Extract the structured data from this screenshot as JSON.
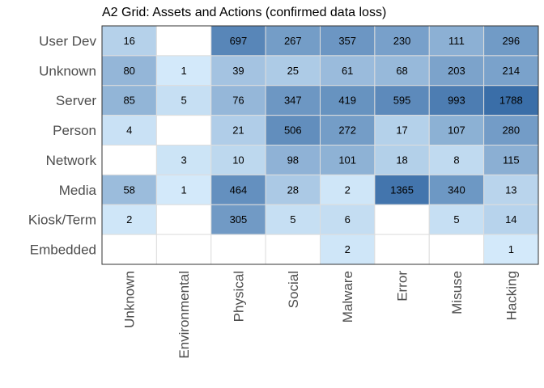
{
  "chart_data": {
    "type": "heatmap",
    "title": "A2 Grid: Assets and Actions (confirmed data loss)",
    "xlabel": "",
    "ylabel": "",
    "x_categories": [
      "Unknown",
      "Environmental",
      "Physical",
      "Social",
      "Malware",
      "Error",
      "Misuse",
      "Hacking"
    ],
    "y_categories": [
      "User Dev",
      "Unknown",
      "Server",
      "Person",
      "Network",
      "Media",
      "Kiosk/Term",
      "Embedded"
    ],
    "values": [
      [
        16,
        null,
        697,
        267,
        357,
        230,
        111,
        296
      ],
      [
        80,
        1,
        39,
        25,
        61,
        68,
        203,
        214
      ],
      [
        85,
        5,
        76,
        347,
        419,
        595,
        993,
        1788
      ],
      [
        4,
        null,
        21,
        506,
        272,
        17,
        107,
        280
      ],
      [
        null,
        3,
        10,
        98,
        101,
        18,
        8,
        115
      ],
      [
        58,
        1,
        464,
        28,
        2,
        1365,
        340,
        13
      ],
      [
        2,
        null,
        305,
        5,
        6,
        null,
        5,
        14
      ],
      [
        null,
        null,
        null,
        null,
        2,
        null,
        null,
        1
      ]
    ],
    "color_low": "#d6ecfc",
    "color_high": "#3a6ea8",
    "empty_color": "#ffffff",
    "grid_color": "#dddddd",
    "border_color": "#333333",
    "x_label_rotation": "vertical"
  }
}
